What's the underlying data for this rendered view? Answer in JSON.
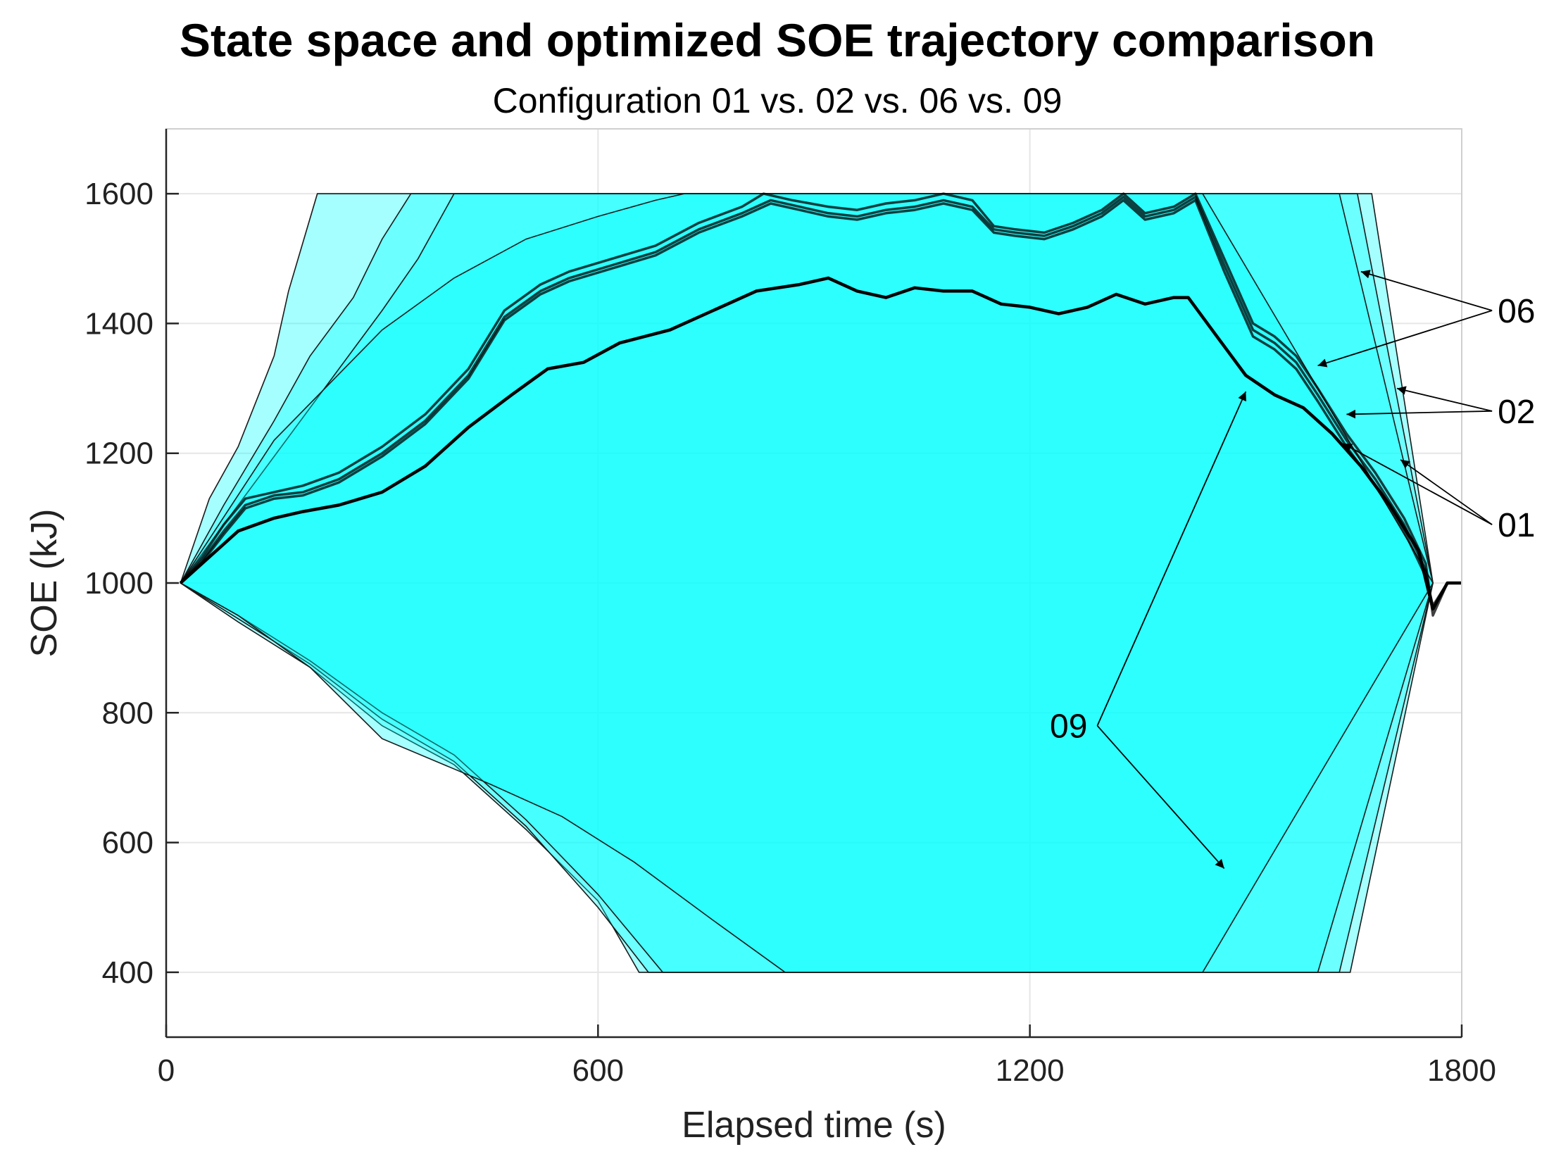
{
  "chart_data": {
    "type": "area",
    "title": "State space and optimized SOE trajectory comparison",
    "subtitle": "Configuration 01 vs. 02 vs. 06 vs. 09",
    "xlabel": "Elapsed time (s)",
    "ylabel": "SOE (kJ)",
    "xlim": [
      0,
      1800
    ],
    "ylim": [
      300,
      1700
    ],
    "xticks": [
      0,
      600,
      1200,
      1800
    ],
    "yticks": [
      400,
      600,
      800,
      1000,
      1200,
      1400,
      1600
    ],
    "grid": true,
    "colors": {
      "fill": "#00ffff",
      "edge": "#1a1a1a",
      "trajectory": "#000000",
      "background": "#ffffff"
    },
    "state_space": [
      {
        "name": "06",
        "upper": [
          [
            20,
            1000
          ],
          [
            60,
            1130
          ],
          [
            100,
            1210
          ],
          [
            150,
            1350
          ],
          [
            170,
            1450
          ],
          [
            210,
            1600
          ],
          [
            1675,
            1600
          ],
          [
            1760,
            1000
          ]
        ],
        "lower": [
          [
            1760,
            1000
          ],
          [
            1645,
            400
          ],
          [
            657,
            400
          ],
          [
            600,
            510
          ],
          [
            500,
            620
          ],
          [
            400,
            720
          ],
          [
            300,
            780
          ],
          [
            200,
            870
          ],
          [
            100,
            940
          ],
          [
            20,
            1000
          ]
        ]
      },
      {
        "name": "02",
        "upper": [
          [
            20,
            1000
          ],
          [
            80,
            1120
          ],
          [
            150,
            1250
          ],
          [
            200,
            1350
          ],
          [
            260,
            1440
          ],
          [
            300,
            1530
          ],
          [
            340,
            1600
          ],
          [
            1655,
            1600
          ],
          [
            1760,
            1000
          ]
        ],
        "lower": [
          [
            1760,
            1000
          ],
          [
            1630,
            400
          ],
          [
            670,
            400
          ],
          [
            600,
            500
          ],
          [
            500,
            625
          ],
          [
            400,
            725
          ],
          [
            300,
            790
          ],
          [
            200,
            875
          ],
          [
            100,
            945
          ],
          [
            20,
            1000
          ]
        ]
      },
      {
        "name": "01",
        "upper": [
          [
            20,
            1000
          ],
          [
            100,
            1120
          ],
          [
            200,
            1270
          ],
          [
            300,
            1420
          ],
          [
            350,
            1500
          ],
          [
            400,
            1600
          ],
          [
            1630,
            1600
          ],
          [
            1760,
            1000
          ]
        ],
        "lower": [
          [
            1760,
            1000
          ],
          [
            1600,
            400
          ],
          [
            690,
            400
          ],
          [
            600,
            520
          ],
          [
            500,
            635
          ],
          [
            400,
            735
          ],
          [
            300,
            800
          ],
          [
            200,
            880
          ],
          [
            100,
            950
          ],
          [
            20,
            1000
          ]
        ]
      },
      {
        "name": "09",
        "upper": [
          [
            20,
            1000
          ],
          [
            150,
            1220
          ],
          [
            300,
            1390
          ],
          [
            400,
            1470
          ],
          [
            500,
            1530
          ],
          [
            600,
            1565
          ],
          [
            680,
            1590
          ],
          [
            720,
            1600
          ],
          [
            1440,
            1600
          ],
          [
            1760,
            1000
          ]
        ],
        "lower": [
          [
            1760,
            1000
          ],
          [
            1440,
            400
          ],
          [
            860,
            400
          ],
          [
            760,
            480
          ],
          [
            650,
            570
          ],
          [
            550,
            640
          ],
          [
            450,
            690
          ],
          [
            300,
            760
          ],
          [
            200,
            870
          ],
          [
            100,
            950
          ],
          [
            20,
            1000
          ]
        ]
      }
    ],
    "trajectories": [
      {
        "name": "06",
        "points": [
          [
            20,
            1000
          ],
          [
            50,
            1040
          ],
          [
            80,
            1090
          ],
          [
            110,
            1130
          ],
          [
            150,
            1140
          ],
          [
            190,
            1150
          ],
          [
            240,
            1170
          ],
          [
            300,
            1210
          ],
          [
            360,
            1260
          ],
          [
            420,
            1330
          ],
          [
            470,
            1420
          ],
          [
            520,
            1460
          ],
          [
            560,
            1480
          ],
          [
            620,
            1500
          ],
          [
            680,
            1520
          ],
          [
            740,
            1555
          ],
          [
            800,
            1580
          ],
          [
            830,
            1600
          ],
          [
            870,
            1590
          ],
          [
            920,
            1580
          ],
          [
            960,
            1575
          ],
          [
            1000,
            1585
          ],
          [
            1040,
            1590
          ],
          [
            1080,
            1600
          ],
          [
            1120,
            1590
          ],
          [
            1150,
            1550
          ],
          [
            1180,
            1545
          ],
          [
            1220,
            1540
          ],
          [
            1260,
            1555
          ],
          [
            1300,
            1575
          ],
          [
            1330,
            1600
          ],
          [
            1360,
            1570
          ],
          [
            1400,
            1580
          ],
          [
            1430,
            1600
          ],
          [
            1470,
            1500
          ],
          [
            1510,
            1400
          ],
          [
            1540,
            1380
          ],
          [
            1570,
            1350
          ],
          [
            1600,
            1300
          ],
          [
            1640,
            1230
          ],
          [
            1680,
            1170
          ],
          [
            1720,
            1100
          ],
          [
            1750,
            1030
          ],
          [
            1760,
            950
          ],
          [
            1780,
            1000
          ],
          [
            1800,
            1000
          ]
        ]
      },
      {
        "name": "02",
        "points": [
          [
            20,
            1000
          ],
          [
            50,
            1035
          ],
          [
            80,
            1080
          ],
          [
            110,
            1120
          ],
          [
            150,
            1135
          ],
          [
            190,
            1140
          ],
          [
            240,
            1160
          ],
          [
            300,
            1200
          ],
          [
            360,
            1250
          ],
          [
            420,
            1320
          ],
          [
            470,
            1410
          ],
          [
            520,
            1450
          ],
          [
            560,
            1470
          ],
          [
            620,
            1490
          ],
          [
            680,
            1510
          ],
          [
            740,
            1545
          ],
          [
            800,
            1570
          ],
          [
            840,
            1590
          ],
          [
            880,
            1580
          ],
          [
            920,
            1570
          ],
          [
            960,
            1565
          ],
          [
            1000,
            1575
          ],
          [
            1040,
            1580
          ],
          [
            1080,
            1590
          ],
          [
            1120,
            1580
          ],
          [
            1150,
            1545
          ],
          [
            1180,
            1540
          ],
          [
            1220,
            1535
          ],
          [
            1260,
            1550
          ],
          [
            1300,
            1570
          ],
          [
            1330,
            1595
          ],
          [
            1360,
            1565
          ],
          [
            1400,
            1575
          ],
          [
            1430,
            1595
          ],
          [
            1470,
            1490
          ],
          [
            1510,
            1390
          ],
          [
            1540,
            1370
          ],
          [
            1570,
            1340
          ],
          [
            1600,
            1290
          ],
          [
            1640,
            1220
          ],
          [
            1680,
            1160
          ],
          [
            1720,
            1090
          ],
          [
            1750,
            1020
          ],
          [
            1760,
            960
          ],
          [
            1780,
            1000
          ],
          [
            1800,
            1000
          ]
        ]
      },
      {
        "name": "01",
        "points": [
          [
            20,
            1000
          ],
          [
            50,
            1032
          ],
          [
            80,
            1075
          ],
          [
            110,
            1115
          ],
          [
            150,
            1130
          ],
          [
            190,
            1135
          ],
          [
            240,
            1155
          ],
          [
            300,
            1195
          ],
          [
            360,
            1245
          ],
          [
            420,
            1315
          ],
          [
            470,
            1405
          ],
          [
            520,
            1445
          ],
          [
            560,
            1465
          ],
          [
            620,
            1485
          ],
          [
            680,
            1505
          ],
          [
            740,
            1540
          ],
          [
            800,
            1565
          ],
          [
            840,
            1585
          ],
          [
            880,
            1575
          ],
          [
            920,
            1565
          ],
          [
            960,
            1560
          ],
          [
            1000,
            1570
          ],
          [
            1040,
            1575
          ],
          [
            1080,
            1585
          ],
          [
            1120,
            1575
          ],
          [
            1150,
            1540
          ],
          [
            1180,
            1535
          ],
          [
            1220,
            1530
          ],
          [
            1260,
            1545
          ],
          [
            1300,
            1565
          ],
          [
            1330,
            1590
          ],
          [
            1360,
            1560
          ],
          [
            1400,
            1570
          ],
          [
            1430,
            1590
          ],
          [
            1470,
            1480
          ],
          [
            1510,
            1380
          ],
          [
            1540,
            1360
          ],
          [
            1570,
            1330
          ],
          [
            1600,
            1280
          ],
          [
            1640,
            1210
          ],
          [
            1680,
            1150
          ],
          [
            1720,
            1080
          ],
          [
            1750,
            1010
          ],
          [
            1760,
            965
          ],
          [
            1780,
            1000
          ],
          [
            1800,
            1000
          ]
        ]
      },
      {
        "name": "09",
        "points": [
          [
            20,
            1000
          ],
          [
            60,
            1040
          ],
          [
            100,
            1080
          ],
          [
            150,
            1100
          ],
          [
            190,
            1110
          ],
          [
            240,
            1120
          ],
          [
            300,
            1140
          ],
          [
            360,
            1180
          ],
          [
            420,
            1240
          ],
          [
            480,
            1290
          ],
          [
            530,
            1330
          ],
          [
            580,
            1340
          ],
          [
            630,
            1370
          ],
          [
            700,
            1390
          ],
          [
            760,
            1420
          ],
          [
            820,
            1450
          ],
          [
            880,
            1460
          ],
          [
            920,
            1470
          ],
          [
            960,
            1450
          ],
          [
            1000,
            1440
          ],
          [
            1040,
            1455
          ],
          [
            1080,
            1450
          ],
          [
            1120,
            1450
          ],
          [
            1160,
            1430
          ],
          [
            1200,
            1425
          ],
          [
            1240,
            1415
          ],
          [
            1280,
            1425
          ],
          [
            1320,
            1445
          ],
          [
            1360,
            1430
          ],
          [
            1400,
            1440
          ],
          [
            1420,
            1440
          ],
          [
            1460,
            1380
          ],
          [
            1500,
            1320
          ],
          [
            1540,
            1290
          ],
          [
            1580,
            1270
          ],
          [
            1620,
            1230
          ],
          [
            1660,
            1180
          ],
          [
            1700,
            1120
          ],
          [
            1740,
            1050
          ],
          [
            1760,
            960
          ],
          [
            1780,
            1000
          ],
          [
            1800,
            1000
          ]
        ]
      }
    ],
    "annotations": [
      {
        "label": "06",
        "pos": [
          1850,
          1420
        ],
        "arrows_to": [
          [
            1660,
            1480
          ],
          [
            1600,
            1335
          ]
        ]
      },
      {
        "label": "02",
        "pos": [
          1850,
          1265
        ],
        "arrows_to": [
          [
            1710,
            1300
          ],
          [
            1640,
            1260
          ]
        ]
      },
      {
        "label": "01",
        "pos": [
          1850,
          1090
        ],
        "arrows_to": [
          [
            1715,
            1190
          ],
          [
            1635,
            1215
          ]
        ]
      },
      {
        "label": "09",
        "pos": [
          1280,
          780
        ],
        "arrows_to": [
          [
            1500,
            1295
          ],
          [
            1470,
            560
          ]
        ]
      }
    ]
  }
}
